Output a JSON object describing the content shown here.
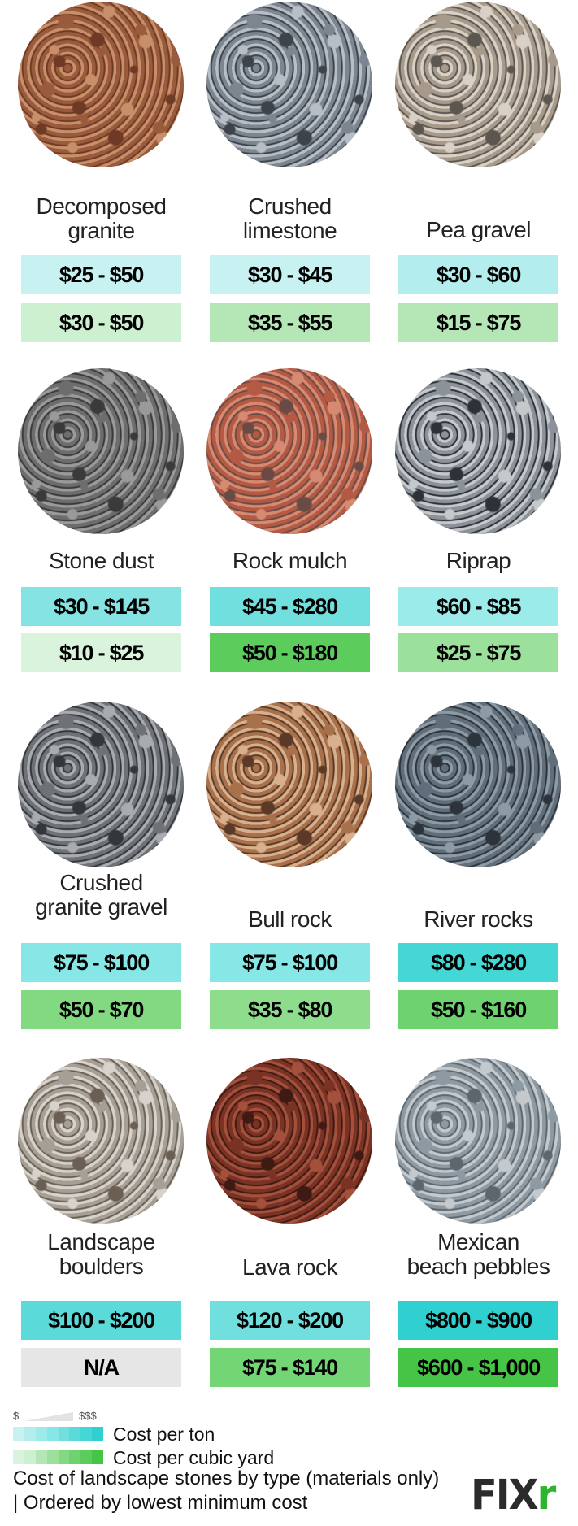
{
  "stones": [
    {
      "name": [
        "Decomposed",
        "granite"
      ],
      "ton": "$25 - $50",
      "yard": "$30 - $50",
      "ton_color": "#c8f1f1",
      "yard_color": "#ccf0d0",
      "texture": [
        "#9a5a3c",
        "#c8906a",
        "#6e3a25"
      ]
    },
    {
      "name": [
        "Crushed",
        "limestone"
      ],
      "ton": "$30 - $45",
      "yard": "$35 - $55",
      "ton_color": "#c8f1f1",
      "yard_color": "#b5e6b6",
      "texture": [
        "#7d8690",
        "#b7bec5",
        "#3d434a"
      ]
    },
    {
      "name": [
        "Pea gravel"
      ],
      "ton": "$30 - $60",
      "yard": "$15 - $75",
      "ton_color": "#b3eded",
      "yard_color": "#b5e6b6",
      "texture": [
        "#a79a8a",
        "#d9d1c6",
        "#5b5650"
      ]
    },
    {
      "name": [
        "Stone dust"
      ],
      "ton": "$30 - $145",
      "yard": "$10 - $25",
      "ton_color": "#86e3e3",
      "yard_color": "#daf3dc",
      "texture": [
        "#6d6d6d",
        "#9a9a9a",
        "#3a3a3a"
      ]
    },
    {
      "name": [
        "Rock mulch"
      ],
      "ton": "$45 - $280",
      "yard": "$50 - $180",
      "ton_color": "#72dfdf",
      "yard_color": "#5ccc5c",
      "texture": [
        "#b45a44",
        "#d68a72",
        "#6a4a44"
      ]
    },
    {
      "name": [
        "Riprap"
      ],
      "ton": "$60 - $85",
      "yard": "$25 - $75",
      "ton_color": "#9bebeb",
      "yard_color": "#9be09b",
      "texture": [
        "#8c929a",
        "#c6c9cc",
        "#2e3238"
      ]
    },
    {
      "name": [
        "Crushed",
        "granite gravel"
      ],
      "ton": "$75 - $100",
      "yard": "$50 - $70",
      "ton_color": "#87e6e6",
      "yard_color": "#82d982",
      "texture": [
        "#6e7276",
        "#a8acb0",
        "#33363a"
      ]
    },
    {
      "name": [
        "Bull rock"
      ],
      "ton": "$75 - $100",
      "yard": "$35 - $80",
      "ton_color": "#87e6e6",
      "yard_color": "#8ddd8d",
      "texture": [
        "#a8714c",
        "#d8b08e",
        "#5a3a26"
      ]
    },
    {
      "name": [
        "River rocks"
      ],
      "ton": "$80 - $280",
      "yard": "$50 - $160",
      "ton_color": "#45d6d6",
      "yard_color": "#6ed26e",
      "texture": [
        "#5f6e7a",
        "#8e9ba5",
        "#2c333a"
      ]
    },
    {
      "name": [
        "Landscape",
        "boulders"
      ],
      "ton": "$100 - $200",
      "yard": "N/A",
      "ton_color": "#5bdada",
      "yard_color": "#e6e6e6",
      "texture": [
        "#a59f96",
        "#d7d3cc",
        "#6a5f52"
      ]
    },
    {
      "name": [
        "Lava rock"
      ],
      "ton": "$120 - $200",
      "yard": "$75 - $140",
      "ton_color": "#72dfdf",
      "yard_color": "#74d574",
      "texture": [
        "#7a3224",
        "#a3503c",
        "#3e1a12"
      ]
    },
    {
      "name": [
        "Mexican",
        "beach pebbles"
      ],
      "ton": "$800 - $900",
      "yard": "$600 - $1,000",
      "ton_color": "#30d0d0",
      "yard_color": "#46c446",
      "texture": [
        "#8e9aa3",
        "#c3c9cc",
        "#5d666c"
      ]
    }
  ],
  "legend": {
    "scale_low": "$",
    "scale_high": "$$$",
    "ton_label": "Cost per ton",
    "yard_label": "Cost per cubic yard",
    "ton_ramp": [
      "#c8f1f1",
      "#b3eded",
      "#9bebeb",
      "#87e6e6",
      "#72dfdf",
      "#5bdada",
      "#45d6d6",
      "#30d0d0"
    ],
    "yard_ramp": [
      "#daf3dc",
      "#ccf0d0",
      "#b5e6b6",
      "#9be09b",
      "#82d982",
      "#6ed26e",
      "#5ccc5c",
      "#46c446"
    ]
  },
  "caption": "Cost of landscape stones by type (materials only) | Ordered by lowest minimum cost",
  "logo": {
    "text": "FIX",
    "accent": "r"
  }
}
